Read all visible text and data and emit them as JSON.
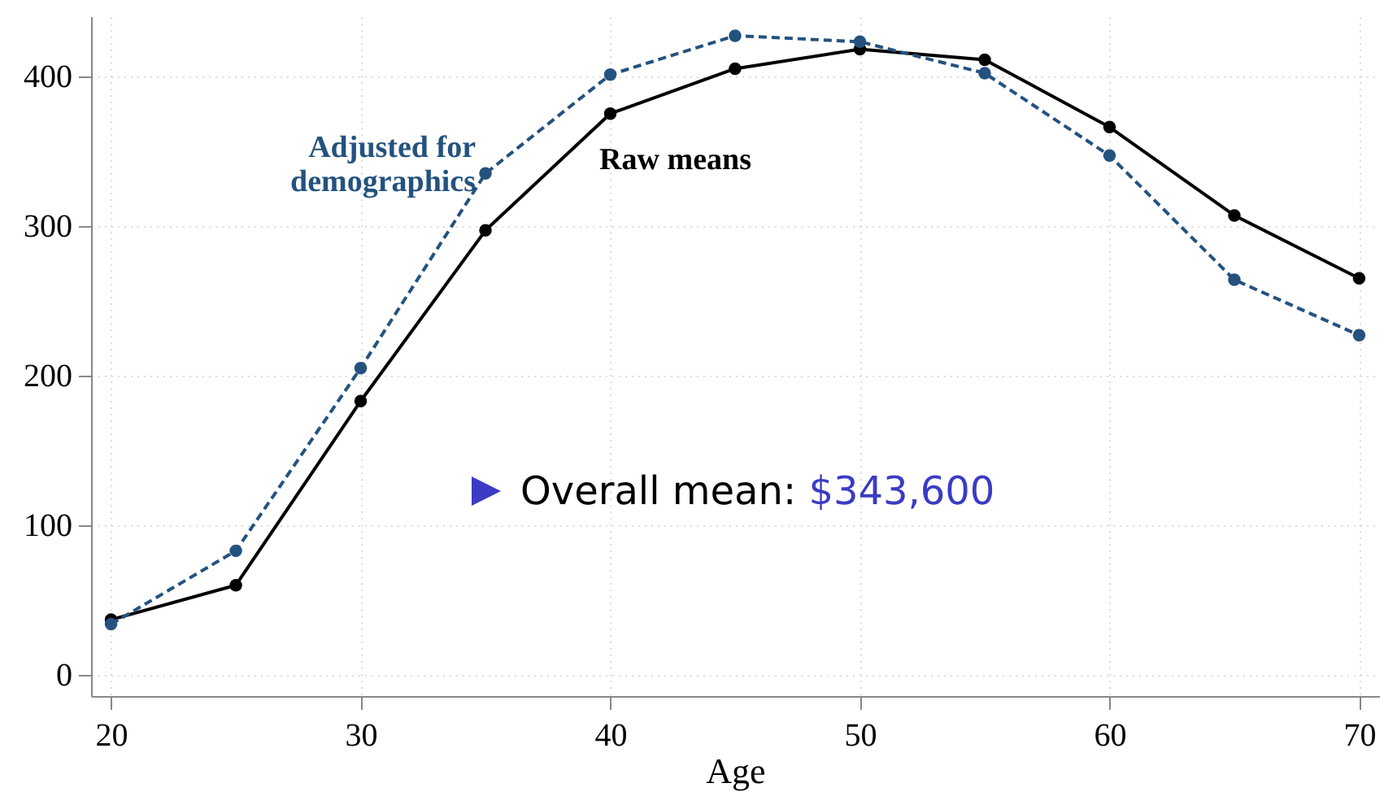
{
  "chart_data": {
    "type": "line",
    "xlabel": "Age",
    "x": [
      20,
      25,
      30,
      35,
      40,
      45,
      50,
      55,
      60,
      65,
      70
    ],
    "series": [
      {
        "name": "Adjusted for demographics",
        "color": "#24527f",
        "line_style": "dashed",
        "values": [
          34,
          83,
          205,
          335,
          401,
          427,
          423,
          402,
          347,
          264,
          227
        ]
      },
      {
        "name": "Raw means",
        "color": "#000000",
        "line_style": "solid",
        "values": [
          37,
          60,
          183,
          297,
          375,
          405,
          418,
          411,
          366,
          307,
          265
        ]
      }
    ],
    "xlim": [
      19.2,
      70.8
    ],
    "xticks": [
      20,
      30,
      40,
      50,
      60,
      70
    ],
    "ylim": [
      -14,
      440
    ],
    "yticks": [
      0,
      100,
      200,
      300,
      400
    ],
    "grid": true,
    "marker": "circle",
    "annotations": [
      "Overall mean: $343,600"
    ]
  }
}
